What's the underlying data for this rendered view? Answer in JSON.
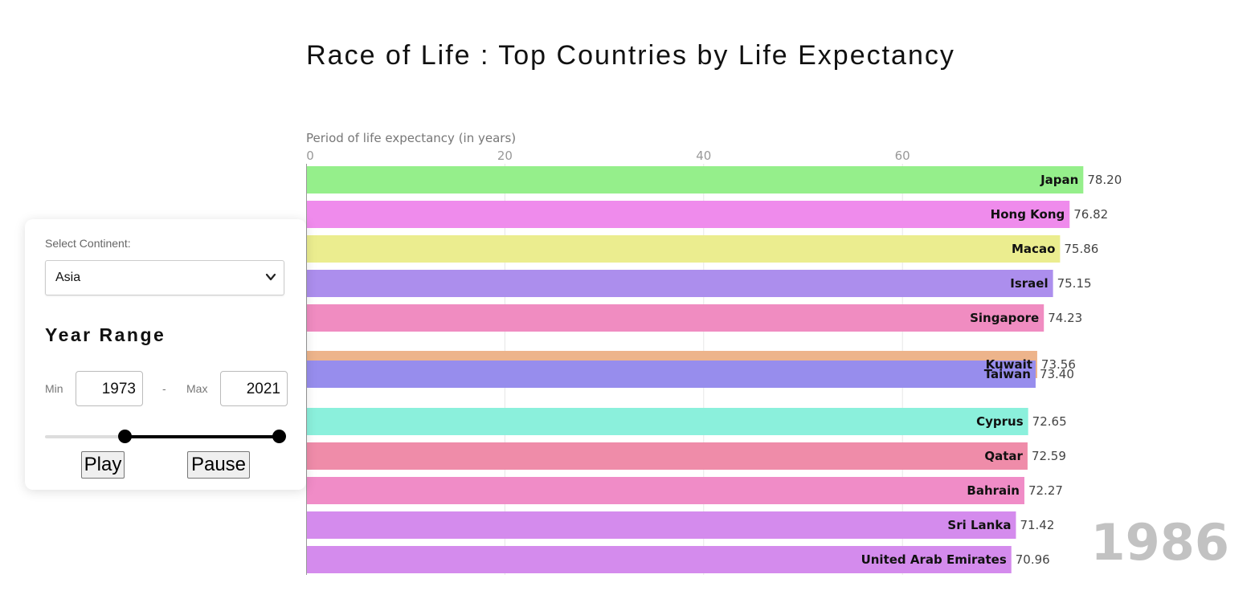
{
  "title": "Race of Life : Top Countries by Life Expectancy",
  "controls": {
    "continent_label": "Select Continent:",
    "continent_value": "Asia",
    "year_range_heading": "Year Range",
    "min_label": "Min",
    "max_label": "Max",
    "separator": "-",
    "min_year": "1973",
    "max_year": "2021",
    "play_label": "Play",
    "pause_label": "Pause",
    "icons": {
      "select_chevron": "chevron-down-icon"
    }
  },
  "chart_data": {
    "type": "bar",
    "orientation": "horizontal",
    "xlabel": "Period of life expectancy (in years)",
    "xlim": [
      0,
      78
    ],
    "x_ticks": [
      "0",
      "20",
      "40",
      "60"
    ],
    "grid": true,
    "year": "1986",
    "categories": [
      "Japan",
      "Hong Kong",
      "Macao",
      "Israel",
      "Singapore",
      "Kuwait",
      "Taiwan",
      "Cyprus",
      "Qatar",
      "Bahrain",
      "Sri Lanka",
      "United Arab Emirates"
    ],
    "values": [
      78.2,
      76.82,
      75.86,
      75.15,
      74.23,
      73.56,
      73.4,
      72.65,
      72.59,
      72.27,
      71.42,
      70.96
    ],
    "value_labels": [
      "78.20",
      "76.82",
      "75.86",
      "75.15",
      "74.23",
      "73.56",
      "73.40",
      "72.65",
      "72.59",
      "72.27",
      "71.42",
      "70.96"
    ],
    "colors": [
      "#95ef8b",
      "#ef8bec",
      "#ebed8f",
      "#ac8eed",
      "#f08cc1",
      "#edb48b",
      "#978ded",
      "#8bf0dc",
      "#ef8ca9",
      "#f08cc7",
      "#d48bed",
      "#d48bed"
    ]
  }
}
